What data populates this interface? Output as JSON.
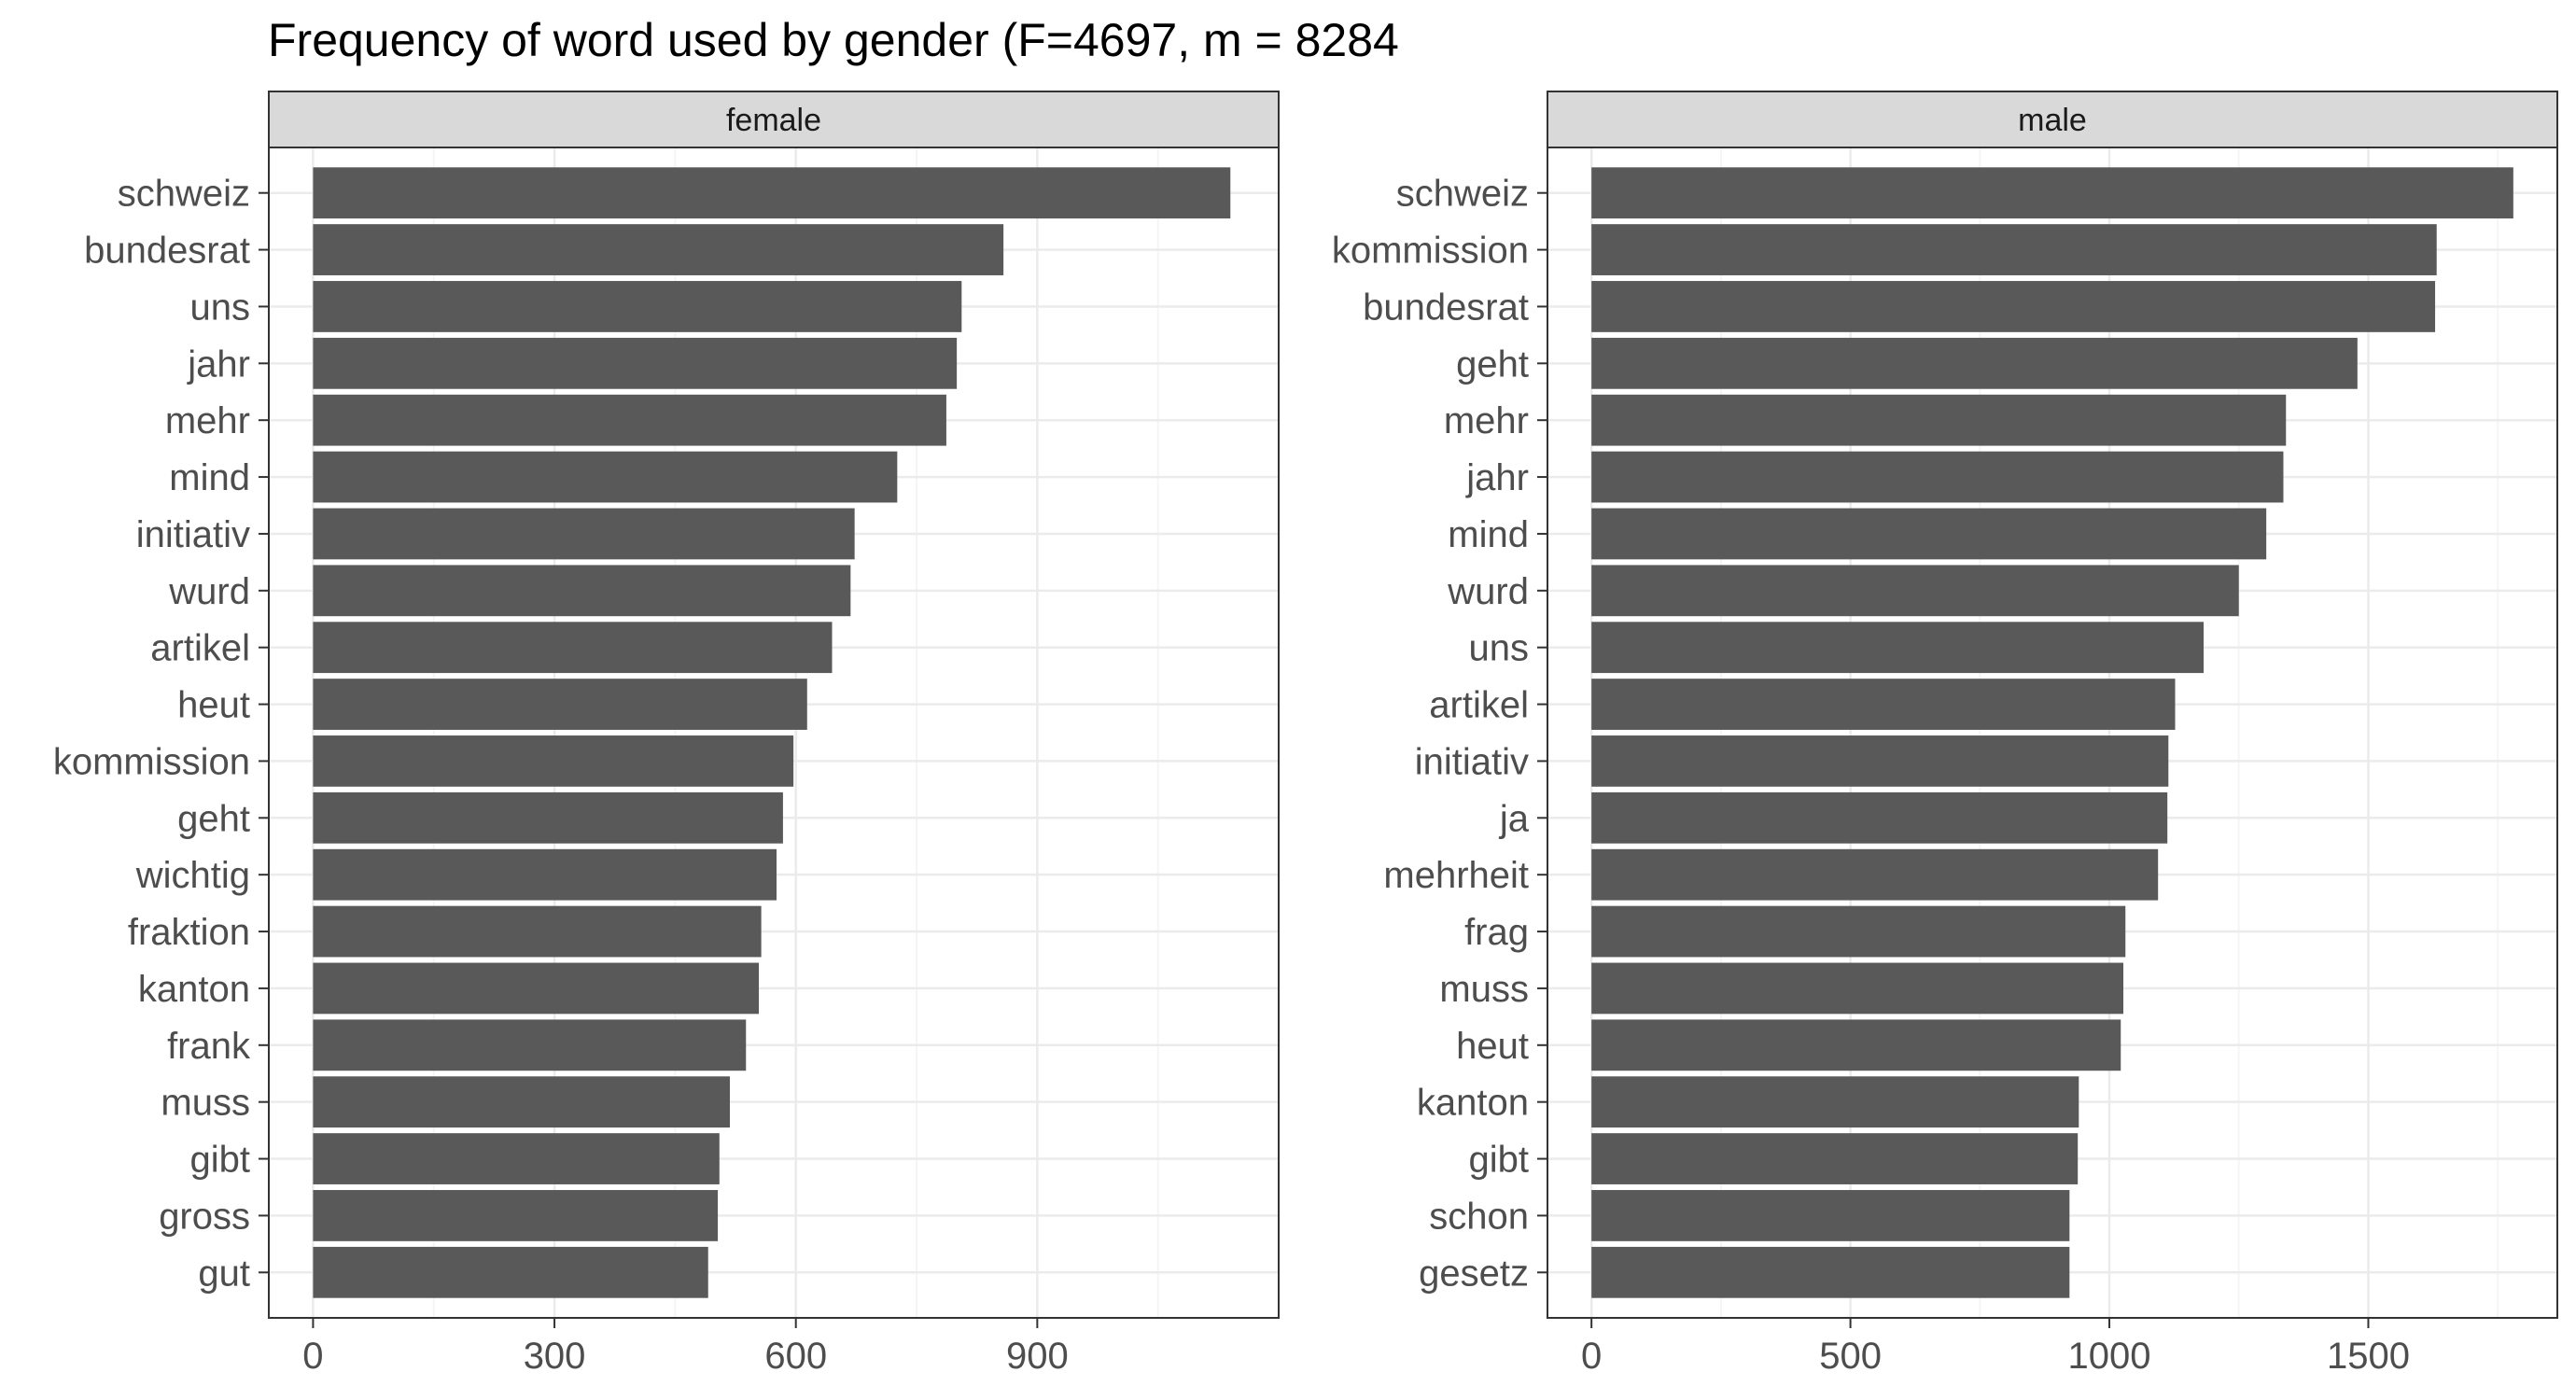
{
  "chart_data": {
    "type": "bar",
    "title": "Frequency of word used by gender (F=4697, m = 8284",
    "xlabel": "",
    "ylabel": "",
    "orientation": "horizontal",
    "grid": true,
    "panels": [
      {
        "name": "female",
        "categories": [
          "schweiz",
          "bundesrat",
          "uns",
          "jahr",
          "mehr",
          "mind",
          "initiativ",
          "wurd",
          "artikel",
          "heut",
          "kommission",
          "geht",
          "wichtig",
          "fraktion",
          "kanton",
          "frank",
          "muss",
          "gibt",
          "gross",
          "gut"
        ],
        "values": [
          1140,
          858,
          806,
          800,
          787,
          726,
          673,
          668,
          645,
          614,
          597,
          584,
          576,
          557,
          554,
          538,
          518,
          505,
          503,
          491
        ],
        "xlim": [
          -55,
          1200
        ],
        "xticks": [
          0,
          300,
          600,
          900
        ]
      },
      {
        "name": "male",
        "categories": [
          "schweiz",
          "kommission",
          "bundesrat",
          "geht",
          "mehr",
          "jahr",
          "mind",
          "wurd",
          "uns",
          "artikel",
          "initiativ",
          "ja",
          "mehrheit",
          "frag",
          "muss",
          "heut",
          "kanton",
          "gibt",
          "schon",
          "gesetz"
        ],
        "values": [
          1780,
          1632,
          1629,
          1479,
          1341,
          1336,
          1303,
          1250,
          1182,
          1127,
          1114,
          1112,
          1094,
          1031,
          1027,
          1022,
          941,
          939,
          923,
          923
        ],
        "xlim": [
          -85,
          1865
        ],
        "xticks": [
          0,
          500,
          1000,
          1500
        ]
      }
    ],
    "colors": {
      "bar": "#595959",
      "strip_fill": "#d9d9d9",
      "panel_border": "#333333",
      "grid_major": "#ebebeb",
      "grid_minor": "#f5f5f5",
      "text": "#4d4d4d"
    }
  }
}
